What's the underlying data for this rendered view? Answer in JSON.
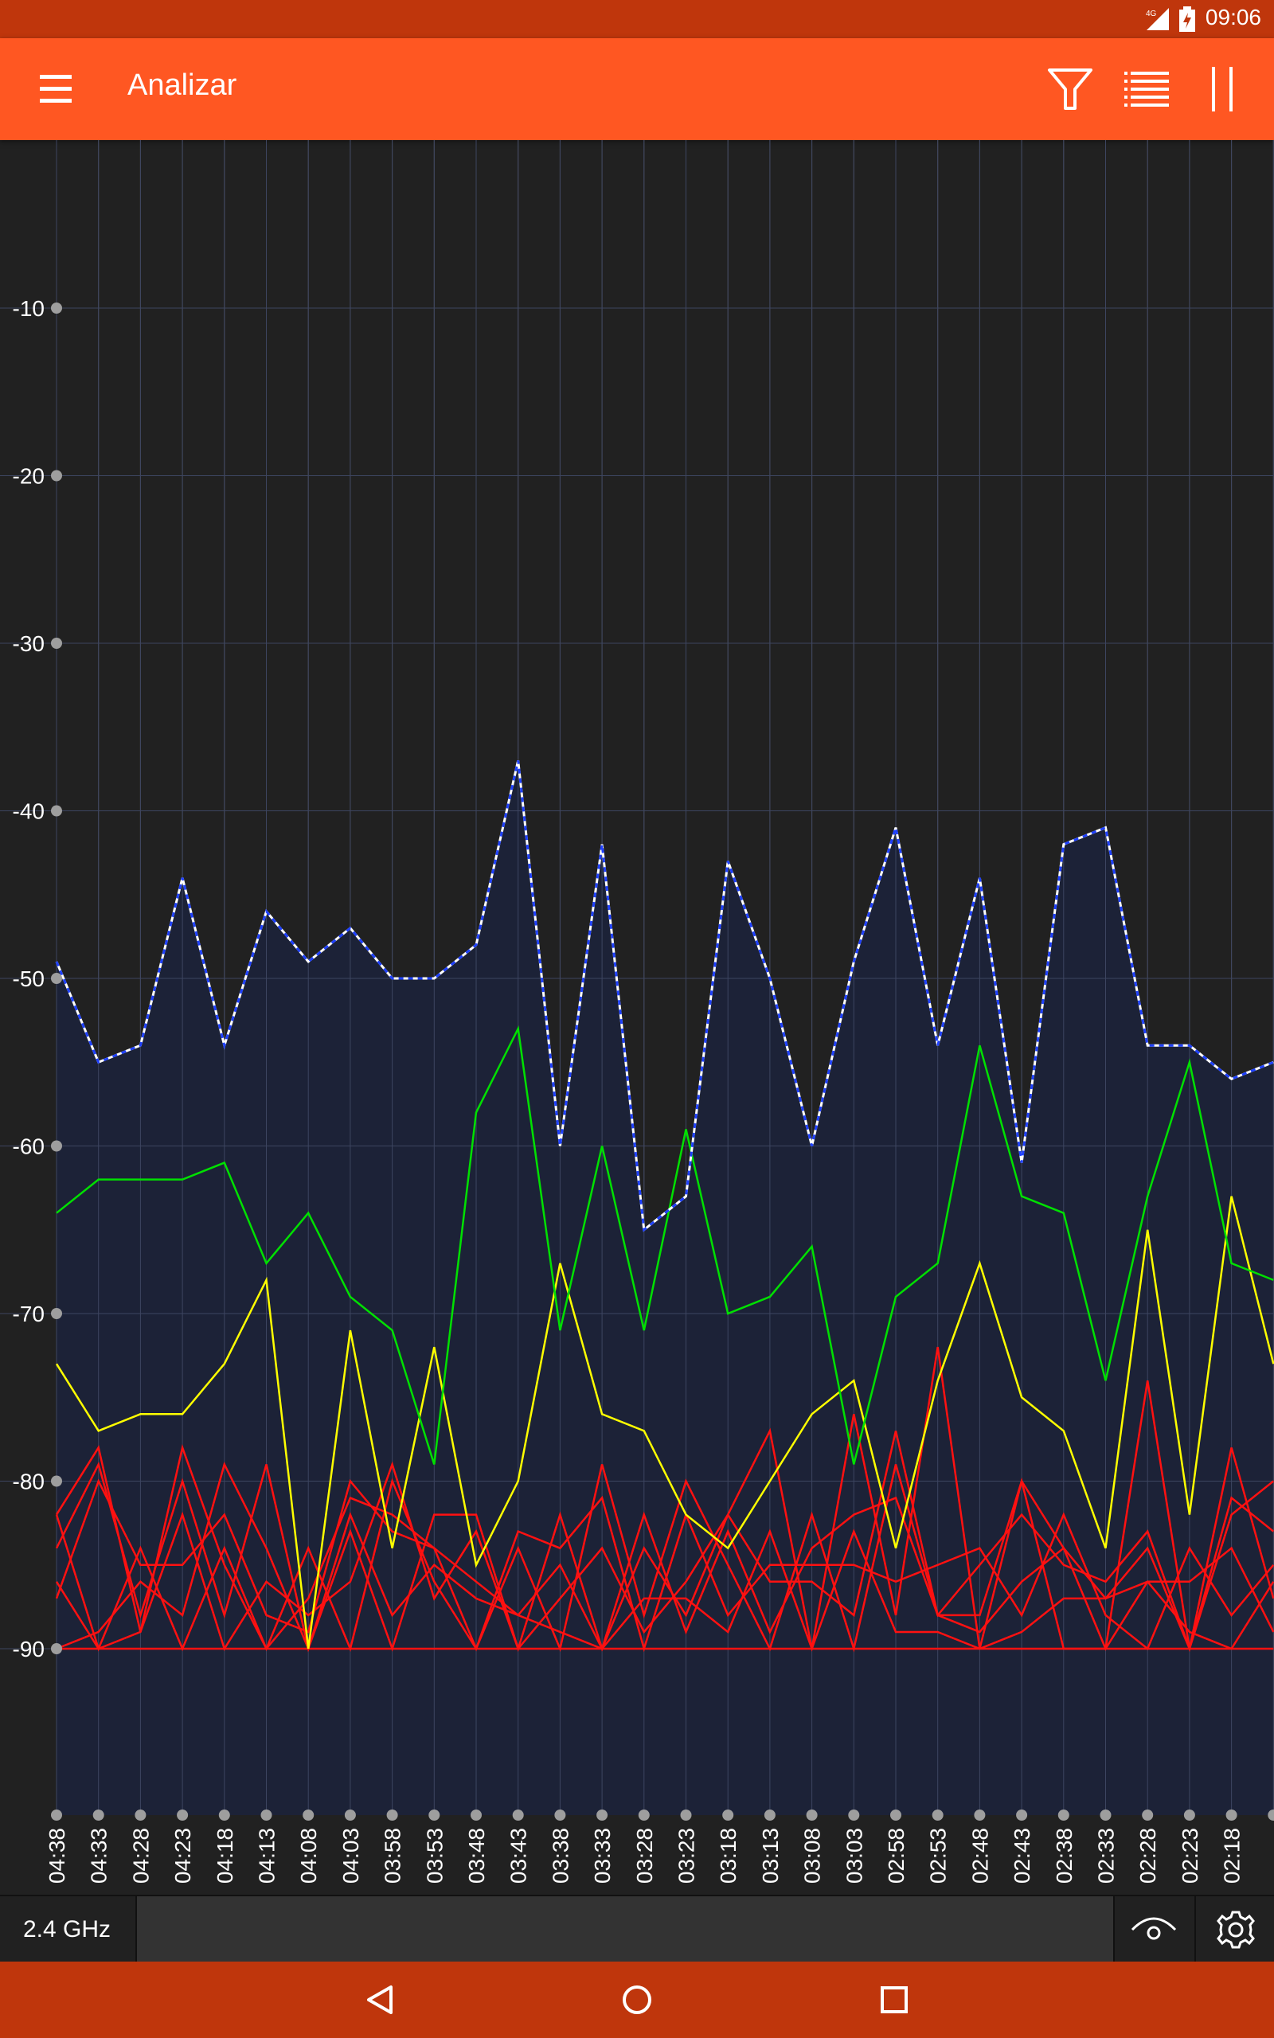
{
  "status_bar": {
    "time": "09:06",
    "network": "4G"
  },
  "app_bar": {
    "title": "Analizar",
    "icons": [
      "menu-icon",
      "filter-icon",
      "list-icon",
      "pause-icon"
    ]
  },
  "chart_data": {
    "type": "line",
    "ylim": [
      -100,
      0
    ],
    "y_ticks": [
      "-10",
      "-20",
      "-30",
      "-40",
      "-50",
      "-60",
      "-70",
      "-80",
      "-90"
    ],
    "y_tick_values": [
      -10,
      -20,
      -30,
      -40,
      -50,
      -60,
      -70,
      -80,
      -90
    ],
    "categories": [
      "04:38",
      "04:33",
      "04:28",
      "04:23",
      "04:18",
      "04:13",
      "04:08",
      "04:03",
      "03:58",
      "03:53",
      "03:48",
      "03:43",
      "03:38",
      "03:33",
      "03:28",
      "03:23",
      "03:18",
      "03:13",
      "03:08",
      "03:03",
      "02:58",
      "02:53",
      "02:48",
      "02:43",
      "02:38",
      "02:33",
      "02:28",
      "02:23",
      "02:18",
      ""
    ],
    "series": [
      {
        "color": "#ffffff",
        "style": "dashed-filled",
        "values": [
          -49,
          -55,
          -54,
          -44,
          -54,
          -46,
          -49,
          -47,
          -50,
          -50,
          -48,
          -37,
          -60,
          -42,
          -65,
          -63,
          -43,
          -50,
          -60,
          -49,
          -41,
          -54,
          -44,
          -61,
          -42,
          -41,
          -54,
          -54,
          -56,
          -55
        ]
      },
      {
        "color": "#00e000",
        "values": [
          -64,
          -62,
          -62,
          -62,
          -61,
          -67,
          -64,
          -69,
          -71,
          -79,
          -58,
          -53,
          -71,
          -60,
          -71,
          -59,
          -70,
          -69,
          -66,
          -79,
          -69,
          -67,
          -54,
          -63,
          -64,
          -74,
          -63,
          -55,
          -67,
          -68
        ]
      },
      {
        "color": "#ffff00",
        "values": [
          -73,
          -77,
          -76,
          -76,
          -73,
          -68,
          -90,
          -71,
          -84,
          -72,
          -85,
          -80,
          -67,
          -76,
          -77,
          -82,
          -84,
          -80,
          -76,
          -74,
          -84,
          -74,
          -67,
          -75,
          -77,
          -84,
          -65,
          -82,
          -63,
          -73
        ]
      },
      {
        "color": "#ff1111",
        "values": [
          -82,
          -78,
          -89,
          -78,
          -85,
          -90,
          -84,
          -90,
          -80,
          -86,
          -90,
          -84,
          -90,
          -79,
          -88,
          -80,
          -85,
          -90,
          -82,
          -90,
          -79,
          -88,
          -88,
          -80,
          -90,
          -90,
          -74,
          -90,
          -78,
          -87
        ]
      },
      {
        "color": "#ff1111",
        "values": [
          -84,
          -79,
          -88,
          -80,
          -88,
          -79,
          -90,
          -83,
          -90,
          -82,
          -82,
          -90,
          -82,
          -90,
          -84,
          -88,
          -82,
          -77,
          -90,
          -76,
          -88,
          -72,
          -90,
          -80,
          -84,
          -87,
          -84,
          -90,
          -82,
          -80
        ]
      },
      {
        "color": "#ff1111",
        "values": [
          -87,
          -80,
          -85,
          -85,
          -82,
          -88,
          -89,
          -80,
          -83,
          -84,
          -90,
          -83,
          -84,
          -81,
          -90,
          -82,
          -88,
          -85,
          -85,
          -85,
          -86,
          -85,
          -84,
          -88,
          -82,
          -88,
          -90,
          -84,
          -88,
          -85
        ]
      },
      {
        "color": "#ff1111",
        "values": [
          -90,
          -89,
          -86,
          -88,
          -79,
          -84,
          -90,
          -82,
          -88,
          -85,
          -87,
          -88,
          -85,
          -90,
          -82,
          -89,
          -83,
          -89,
          -84,
          -82,
          -81,
          -88,
          -85,
          -82,
          -85,
          -86,
          -83,
          -90,
          -81,
          -83
        ]
      },
      {
        "color": "#ff1111",
        "values": [
          -86,
          -90,
          -89,
          -82,
          -90,
          -86,
          -88,
          -86,
          -79,
          -87,
          -83,
          -90,
          -87,
          -84,
          -89,
          -86,
          -82,
          -86,
          -86,
          -88,
          -77,
          -88,
          -89,
          -86,
          -84,
          -90,
          -86,
          -86,
          -84,
          -89
        ]
      },
      {
        "color": "#ff1111",
        "values": [
          -90,
          -90,
          -90,
          -90,
          -90,
          -90,
          -90,
          -90,
          -90,
          -90,
          -90,
          -90,
          -90,
          -90,
          -90,
          -90,
          -90,
          -90,
          -90,
          -90,
          -90,
          -90,
          -90,
          -90,
          -90,
          -90,
          -90,
          -90,
          -90,
          -90
        ]
      },
      {
        "color": "#ff1111",
        "values": [
          -82,
          -90,
          -84,
          -90,
          -84,
          -90,
          -87,
          -81,
          -82,
          -84,
          -86,
          -88,
          -89,
          -90,
          -87,
          -87,
          -89,
          -83,
          -90,
          -83,
          -89,
          -89,
          -90,
          -89,
          -87,
          -87,
          -86,
          -89,
          -90,
          -86
        ]
      }
    ],
    "colors": {
      "background": "#212121",
      "fill": "#1c2237",
      "grid": "#5a5a5a",
      "tick_dot": "#9e9e9e",
      "tick_text": "#ffffff"
    }
  },
  "bottom_bar": {
    "band": "2.4 GHz",
    "icons": [
      "eye-icon",
      "gear-icon"
    ]
  },
  "nav_bar": {
    "icons": [
      "back-icon",
      "home-icon",
      "recents-icon"
    ]
  },
  "theme": {
    "status": "#bf360c",
    "appbar": "#ff5722",
    "navbar": "#bf360c"
  }
}
